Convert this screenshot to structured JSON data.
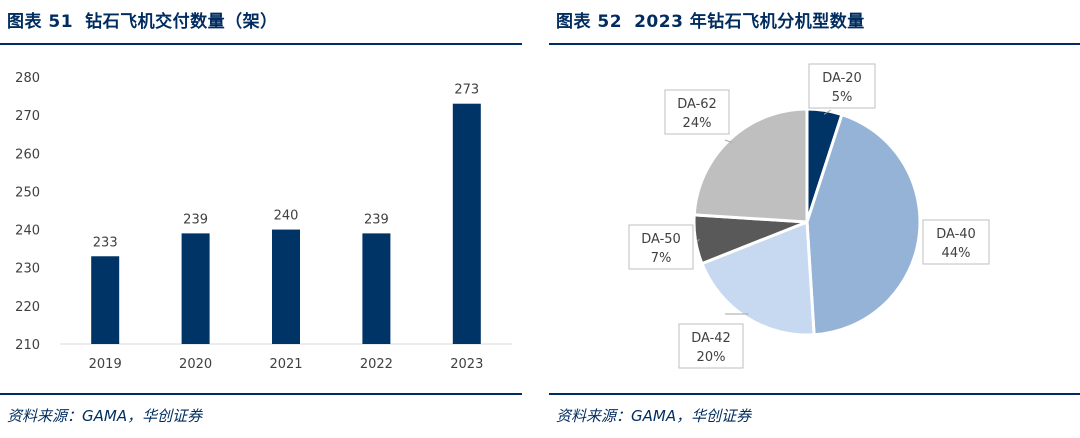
{
  "left": {
    "figure_no": "图表 51",
    "title": "钻石飞机交付数量（架）",
    "source": "资料来源：GAMA，华创证券"
  },
  "right": {
    "figure_no": "图表 52",
    "title": "2023 年钻石飞机分机型数量",
    "source": "资料来源：GAMA，华创证券"
  },
  "colors": {
    "brand": "#002c5f",
    "bar": "#003366",
    "slice_da20": "#003366",
    "slice_da40": "#95b3d7",
    "slice_da42": "#c6d9f1",
    "slice_da50": "#595959",
    "slice_da62": "#bfbfbf"
  },
  "chart_data": [
    {
      "type": "bar",
      "title": "钻石飞机交付数量（架）",
      "categories": [
        "2019",
        "2020",
        "2021",
        "2022",
        "2023"
      ],
      "values": [
        233,
        239,
        240,
        239,
        273
      ],
      "ylim": [
        210,
        280
      ],
      "yticks": [
        210,
        220,
        230,
        240,
        250,
        260,
        270,
        280
      ],
      "xlabel": "",
      "ylabel": "",
      "grid": false,
      "legend": "none"
    },
    {
      "type": "pie",
      "title": "2023 年钻石飞机分机型数量",
      "slices": [
        {
          "label": "DA-20",
          "value": 5,
          "pct_text": "5%"
        },
        {
          "label": "DA-40",
          "value": 44,
          "pct_text": "44%"
        },
        {
          "label": "DA-42",
          "value": 20,
          "pct_text": "20%"
        },
        {
          "label": "DA-50",
          "value": 7,
          "pct_text": "7%"
        },
        {
          "label": "DA-62",
          "value": 24,
          "pct_text": "24%"
        }
      ],
      "start": "12 o'clock, clockwise",
      "legend": "none"
    }
  ]
}
